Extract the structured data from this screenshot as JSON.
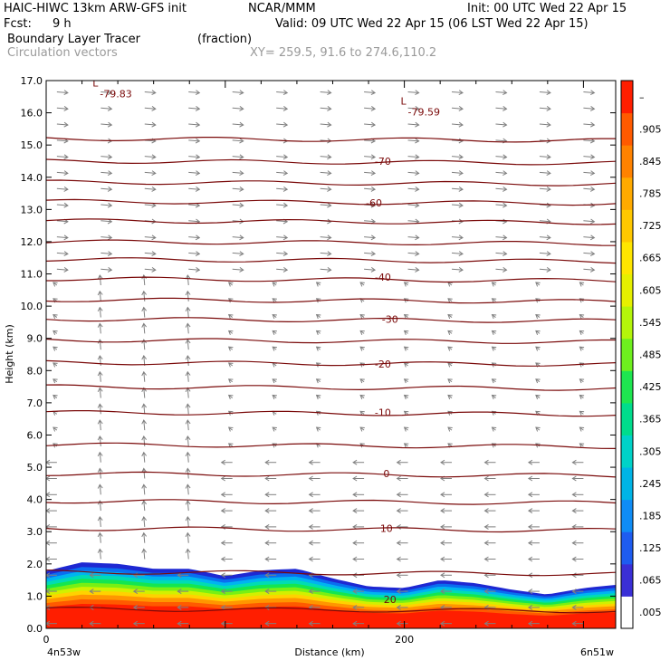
{
  "header": {
    "model": "HAIC-HIWC 13km ARW-GFS init",
    "org": "NCAR/MMM",
    "init": "Init: 00 UTC Wed 22 Apr 15",
    "fcst_label": "Fcst:",
    "fcst_value": "9 h",
    "valid": "Valid: 09 UTC Wed 22 Apr 15 (06 LST Wed 22 Apr 15)",
    "field": "Boundary Layer Tracer",
    "units": "(fraction)",
    "vectors": "Circulation vectors",
    "xy": "XY= 259.5, 91.6 to 274.6,110.2"
  },
  "chart_data": {
    "type": "heatmap",
    "xlabel": "Distance (km)",
    "ylabel": "Height (km)",
    "xlim": [
      0,
      318
    ],
    "ylim": [
      0,
      17
    ],
    "x_ticks": [
      0,
      200
    ],
    "y_ticks": [
      0.0,
      1.0,
      2.0,
      3.0,
      4.0,
      5.0,
      6.0,
      7.0,
      8.0,
      9.0,
      10.0,
      11.0,
      12.0,
      13.0,
      14.0,
      15.0,
      16.0,
      17.0
    ],
    "x_endpoint_labels": [
      "4n53w",
      "6n51w"
    ],
    "colorbar_labels": [
      ".005",
      ".065",
      ".125",
      ".185",
      ".245",
      ".305",
      ".365",
      ".425",
      ".485",
      ".545",
      ".605",
      ".665",
      ".725",
      ".785",
      ".845",
      ".905",
      "–"
    ],
    "colorbar_colors": [
      "#ffffff",
      "#3a2fd6",
      "#1e5cf0",
      "#0f8cf5",
      "#00b4e6",
      "#00d2c8",
      "#00dc8c",
      "#1ee650",
      "#6ef01e",
      "#b4f50a",
      "#e6f000",
      "#ffe600",
      "#ffc800",
      "#ffaa00",
      "#ff8200",
      "#ff5a00",
      "#ff1e00"
    ],
    "temperature_contour_labels": [
      {
        "label": "-70",
        "x": 188,
        "y": 14.5
      },
      {
        "label": "-60",
        "x": 183,
        "y": 13.2
      },
      {
        "label": "-40",
        "x": 188,
        "y": 10.9
      },
      {
        "label": "-30",
        "x": 192,
        "y": 9.6
      },
      {
        "label": "-20",
        "x": 188,
        "y": 8.2
      },
      {
        "label": "-10",
        "x": 188,
        "y": 6.7
      },
      {
        "label": "0",
        "x": 190,
        "y": 4.8
      },
      {
        "label": "10",
        "x": 190,
        "y": 3.1
      },
      {
        "label": "20",
        "x": 192,
        "y": 0.9
      }
    ],
    "contour_lines_km": [
      0.6,
      1.75,
      3.1,
      3.95,
      4.8,
      5.7,
      6.7,
      7.5,
      8.25,
      8.95,
      9.6,
      10.2,
      10.85,
      11.45,
      12.0,
      12.65,
      13.25,
      13.85,
      14.5,
      15.2
    ],
    "lows": [
      {
        "label": "L",
        "value": "-79.83",
        "x": 33,
        "y": 16.7
      },
      {
        "label": "L",
        "value": "-79.59",
        "x": 205,
        "y": 16.15
      }
    ],
    "tracer_top_km": [
      [
        0,
        1.78
      ],
      [
        20,
        2.05
      ],
      [
        40,
        2.0
      ],
      [
        60,
        1.85
      ],
      [
        80,
        1.85
      ],
      [
        100,
        1.62
      ],
      [
        120,
        1.8
      ],
      [
        140,
        1.85
      ],
      [
        160,
        1.55
      ],
      [
        180,
        1.3
      ],
      [
        200,
        1.25
      ],
      [
        220,
        1.5
      ],
      [
        240,
        1.4
      ],
      [
        260,
        1.2
      ],
      [
        280,
        1.05
      ],
      [
        300,
        1.25
      ],
      [
        318,
        1.35
      ]
    ],
    "line_color": "#7a0a0a",
    "vector_color": "#808080"
  }
}
